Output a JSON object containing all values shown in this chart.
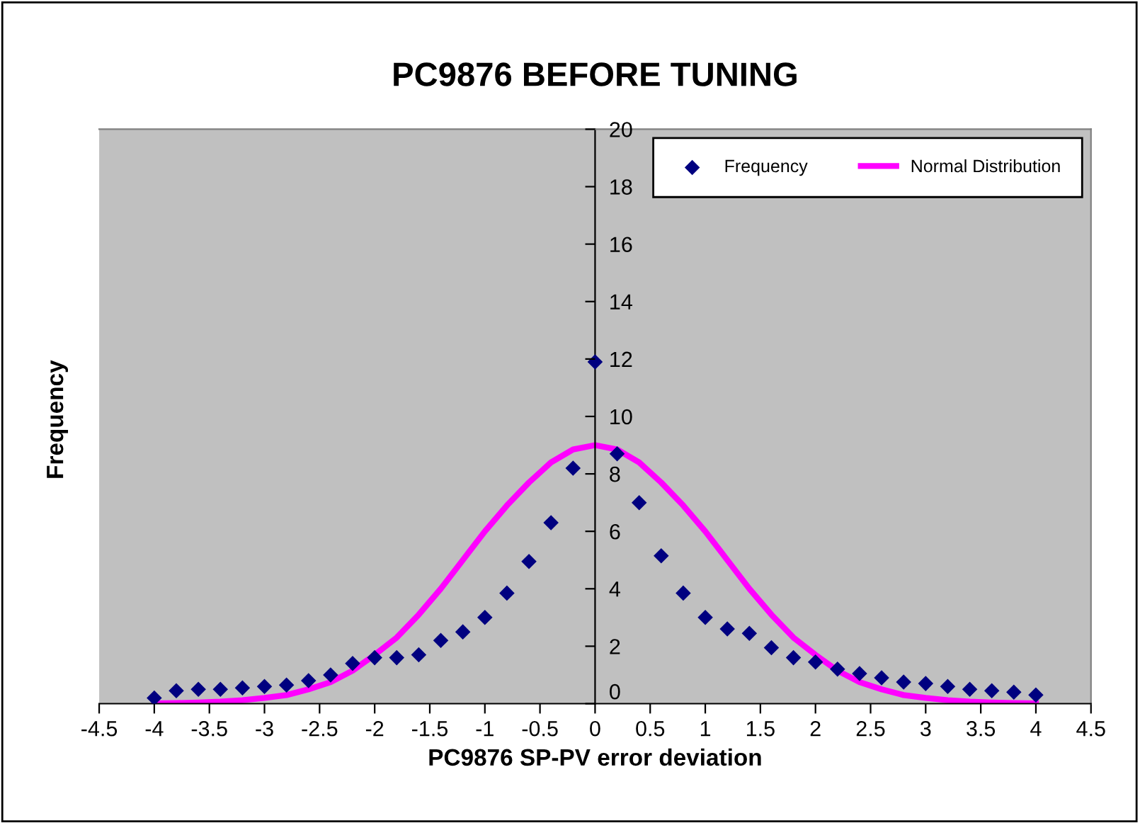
{
  "chart_data": {
    "type": "scatter",
    "title": "PC9876 BEFORE TUNING",
    "xlabel": "PC9876 SP-PV error deviation",
    "ylabel": "Frequency",
    "x": [
      -4,
      -3.8,
      -3.6,
      -3.4,
      -3.2,
      -3,
      -2.8,
      -2.6,
      -2.4,
      -2.2,
      -2,
      -1.8,
      -1.6,
      -1.4,
      -1.2,
      -1,
      -0.8,
      -0.6,
      -0.4,
      -0.2,
      0,
      0.2,
      0.4,
      0.6,
      0.8,
      1,
      1.2,
      1.4,
      1.6,
      1.8,
      2,
      2.2,
      2.4,
      2.6,
      2.8,
      3,
      3.2,
      3.4,
      3.6,
      3.8,
      4
    ],
    "series": [
      {
        "name": "Frequency",
        "type": "scatter",
        "marker": "diamond",
        "color": "#000080",
        "values": [
          0.2,
          0.45,
          0.5,
          0.5,
          0.55,
          0.6,
          0.65,
          0.8,
          1.0,
          1.4,
          1.6,
          1.6,
          1.7,
          2.2,
          2.5,
          3.0,
          3.85,
          4.95,
          6.3,
          8.2,
          11.9,
          8.7,
          7.0,
          5.15,
          3.85,
          3.0,
          2.6,
          2.45,
          1.95,
          1.6,
          1.45,
          1.2,
          1.05,
          0.9,
          0.75,
          0.7,
          0.6,
          0.5,
          0.45,
          0.4,
          0.3
        ]
      },
      {
        "name": "Normal Distribution",
        "type": "line",
        "marker": "none",
        "line_style": "solid",
        "color": "#ff00ff",
        "values": [
          0.01,
          0.02,
          0.04,
          0.07,
          0.12,
          0.2,
          0.3,
          0.5,
          0.75,
          1.15,
          1.7,
          2.3,
          3.1,
          4.0,
          5.0,
          6.0,
          6.9,
          7.7,
          8.4,
          8.85,
          9.0,
          8.85,
          8.4,
          7.7,
          6.9,
          6.0,
          5.0,
          4.0,
          3.1,
          2.3,
          1.7,
          1.15,
          0.75,
          0.5,
          0.3,
          0.2,
          0.12,
          0.07,
          0.04,
          0.02,
          0.01
        ]
      }
    ],
    "xlim": [
      -4.5,
      4.5
    ],
    "xticks": [
      -4.5,
      -4,
      -3.5,
      -3,
      -2.5,
      -2,
      -1.5,
      -1,
      -0.5,
      0,
      0.5,
      1,
      1.5,
      2,
      2.5,
      3,
      3.5,
      4,
      4.5
    ],
    "ylim": [
      0,
      20
    ],
    "yticks": [
      0,
      2,
      4,
      6,
      8,
      10,
      12,
      14,
      16,
      18,
      20
    ],
    "grid": false,
    "legend": "top right"
  }
}
